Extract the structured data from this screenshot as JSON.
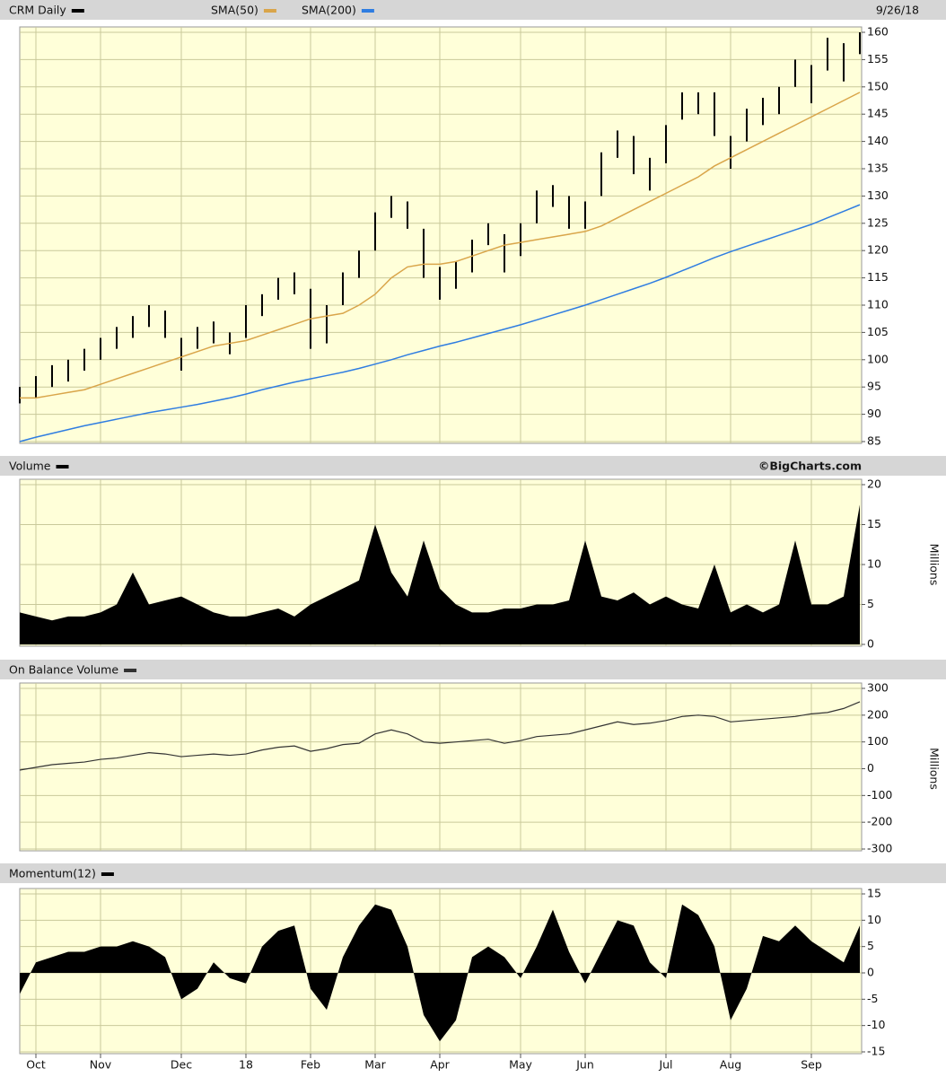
{
  "chart_data": [
    {
      "type": "ohlc",
      "date": "9/26/18",
      "categories": [
        null,
        "Oct",
        null,
        null,
        null,
        "Nov",
        null,
        null,
        null,
        null,
        "Dec",
        null,
        null,
        null,
        "18",
        null,
        null,
        null,
        "Feb",
        null,
        null,
        null,
        "Mar",
        null,
        null,
        null,
        "Apr",
        null,
        null,
        null,
        null,
        "May",
        null,
        null,
        null,
        "Jun",
        null,
        null,
        null,
        null,
        "Jul",
        null,
        null,
        null,
        "Aug",
        null,
        null,
        null,
        null,
        "Sep",
        null,
        null,
        null
      ],
      "series": [
        {
          "name": "CRM Daily",
          "color": "#000000",
          "high": [
            95,
            97,
            99,
            100,
            102,
            104,
            106,
            108,
            110,
            109,
            104,
            106,
            107,
            105,
            110,
            112,
            115,
            116,
            113,
            110,
            116,
            120,
            127,
            130,
            129,
            124,
            117,
            118,
            122,
            125,
            123,
            125,
            131,
            132,
            130,
            129,
            138,
            142,
            141,
            137,
            143,
            149,
            149,
            149,
            141,
            146,
            148,
            150,
            155,
            154,
            159,
            158,
            160
          ],
          "low": [
            92,
            93,
            95,
            96,
            98,
            100,
            102,
            104,
            106,
            104,
            98,
            102,
            103,
            101,
            104,
            108,
            111,
            112,
            102,
            103,
            110,
            115,
            120,
            126,
            124,
            115,
            111,
            113,
            116,
            121,
            116,
            119,
            125,
            128,
            124,
            124,
            130,
            137,
            134,
            131,
            136,
            144,
            145,
            141,
            135,
            140,
            143,
            145,
            150,
            147,
            153,
            151,
            156
          ]
        },
        {
          "name": "SMA(50)",
          "color": "#d9a54a",
          "values": [
            93,
            93,
            93.5,
            94,
            94.5,
            95.5,
            96.5,
            97.5,
            98.5,
            99.5,
            100.5,
            101.5,
            102.5,
            103,
            103.5,
            104.5,
            105.5,
            106.5,
            107.5,
            108,
            108.5,
            110,
            112,
            115,
            117,
            117.5,
            117.5,
            118,
            119,
            120,
            121,
            121.5,
            122,
            122.5,
            123,
            123.5,
            124.5,
            126,
            127.5,
            129,
            130.5,
            132,
            133.5,
            135.5,
            137,
            138.5,
            140,
            141.5,
            143,
            144.5,
            146,
            147.5,
            149
          ]
        },
        {
          "name": "SMA(200)",
          "color": "#2f7de1",
          "values": [
            85,
            85.8,
            86.5,
            87.2,
            87.9,
            88.5,
            89.1,
            89.7,
            90.3,
            90.8,
            91.3,
            91.8,
            92.4,
            93,
            93.7,
            94.5,
            95.2,
            95.9,
            96.5,
            97.1,
            97.7,
            98.4,
            99.2,
            100,
            100.9,
            101.7,
            102.5,
            103.2,
            104,
            104.8,
            105.6,
            106.4,
            107.3,
            108.2,
            109.1,
            110,
            111,
            112,
            113,
            114,
            115.1,
            116.3,
            117.5,
            118.7,
            119.8,
            120.8,
            121.8,
            122.8,
            123.8,
            124.8,
            126,
            127.2,
            128.4
          ]
        }
      ],
      "ylim": [
        85,
        160
      ],
      "yticks": [
        85,
        90,
        95,
        100,
        105,
        110,
        115,
        120,
        125,
        130,
        135,
        140,
        145,
        150,
        155,
        160
      ],
      "grid": true
    },
    {
      "type": "area",
      "title": "Volume",
      "source": "©BigCharts.com",
      "y_label": "Millions",
      "color": "#000000",
      "values": [
        4,
        3.5,
        3,
        3.5,
        3.5,
        4,
        5,
        9,
        5,
        5.5,
        6,
        5,
        4,
        3.5,
        3.5,
        4,
        4.5,
        3.5,
        5,
        6,
        7,
        8,
        15,
        9,
        6,
        13,
        7,
        5,
        4,
        4,
        4.5,
        4.5,
        5,
        5,
        5.5,
        13,
        6,
        5.5,
        6.5,
        5,
        6,
        5,
        4.5,
        10,
        4,
        5,
        4,
        5,
        13,
        5,
        5,
        6,
        17.5
      ],
      "ylim": [
        0,
        20
      ],
      "yticks": [
        0,
        5,
        10,
        15,
        20
      ],
      "grid": true
    },
    {
      "type": "line",
      "title": "On Balance Volume",
      "y_label": "Millions",
      "color": "#333333",
      "values": [
        -5,
        5,
        15,
        20,
        25,
        35,
        40,
        50,
        60,
        55,
        45,
        50,
        55,
        50,
        55,
        70,
        80,
        85,
        65,
        75,
        90,
        95,
        130,
        145,
        130,
        100,
        95,
        100,
        105,
        110,
        95,
        105,
        120,
        125,
        130,
        145,
        160,
        175,
        165,
        170,
        180,
        195,
        200,
        195,
        175,
        180,
        185,
        190,
        195,
        205,
        210,
        225,
        250
      ],
      "ylim": [
        -300,
        300
      ],
      "yticks": [
        -300,
        -200,
        -100,
        0,
        100,
        200,
        300
      ],
      "grid": true
    },
    {
      "type": "area",
      "title": "Momentum(12)",
      "color": "#000000",
      "values": [
        -4,
        2,
        3,
        4,
        4,
        5,
        5,
        6,
        5,
        3,
        -5,
        -3,
        2,
        -1,
        -2,
        5,
        8,
        9,
        -3,
        -7,
        3,
        9,
        13,
        12,
        5,
        -8,
        -13,
        -9,
        3,
        5,
        3,
        -1,
        5,
        12,
        4,
        -2,
        4,
        10,
        9,
        2,
        -1,
        13,
        11,
        5,
        -9,
        -3,
        7,
        6,
        9,
        6,
        4,
        2,
        9
      ],
      "ylim": [
        -15,
        15
      ],
      "yticks": [
        -15,
        -10,
        -5,
        0,
        5,
        10,
        15
      ],
      "grid": true
    }
  ]
}
